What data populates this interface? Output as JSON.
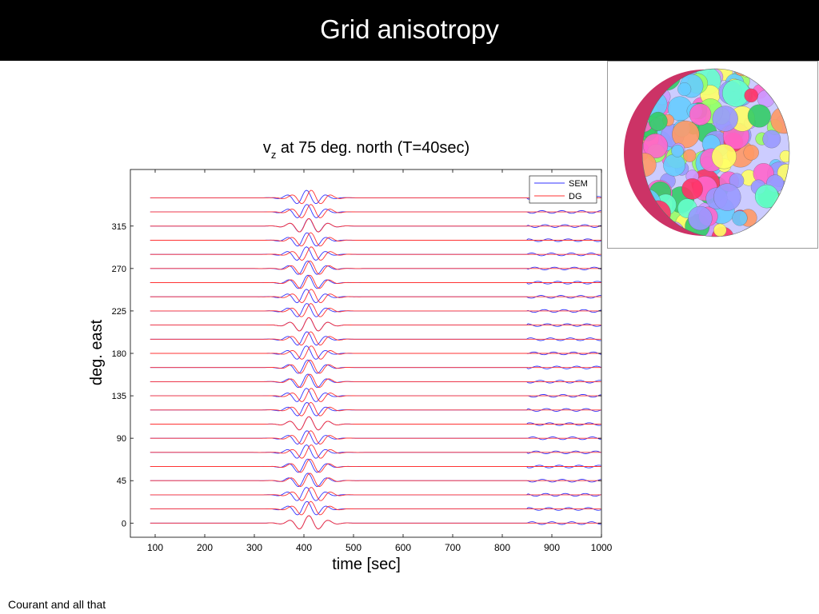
{
  "slide": {
    "title": "Grid anisotropy",
    "footer": "Courant and all that"
  },
  "inset_image": {
    "icon": "meshed-sphere-icon",
    "colors": [
      "#ff66cc",
      "#66ccff",
      "#99ff66",
      "#ffff66",
      "#cc99ff",
      "#66ffcc",
      "#ff9966",
      "#9999ff",
      "#ff3366",
      "#33cc66"
    ]
  },
  "chart_data": {
    "type": "line",
    "title_main": "v",
    "title_sub": "z",
    "title_rest": " at 75 deg. north (T=40sec)",
    "xlabel": "time [sec]",
    "ylabel": "deg. east",
    "xlim": [
      50,
      1000
    ],
    "ylim": [
      -15,
      375
    ],
    "xticks": [
      100,
      200,
      300,
      400,
      500,
      600,
      700,
      800,
      900,
      1000
    ],
    "yticks": [
      0,
      45,
      90,
      135,
      180,
      225,
      270,
      315
    ],
    "trace_offsets": [
      0,
      15,
      30,
      45,
      60,
      75,
      90,
      105,
      120,
      135,
      150,
      165,
      180,
      195,
      210,
      225,
      240,
      255,
      270,
      285,
      300,
      315,
      330,
      345
    ],
    "wavelet": {
      "center_time": 410,
      "period": 40,
      "amplitude_deg": 8
    },
    "series": [
      {
        "name": "SEM",
        "color": "#3333ff"
      },
      {
        "name": "DG",
        "color": "#ff3333"
      }
    ],
    "legend_position": "top-right",
    "grid": false
  }
}
